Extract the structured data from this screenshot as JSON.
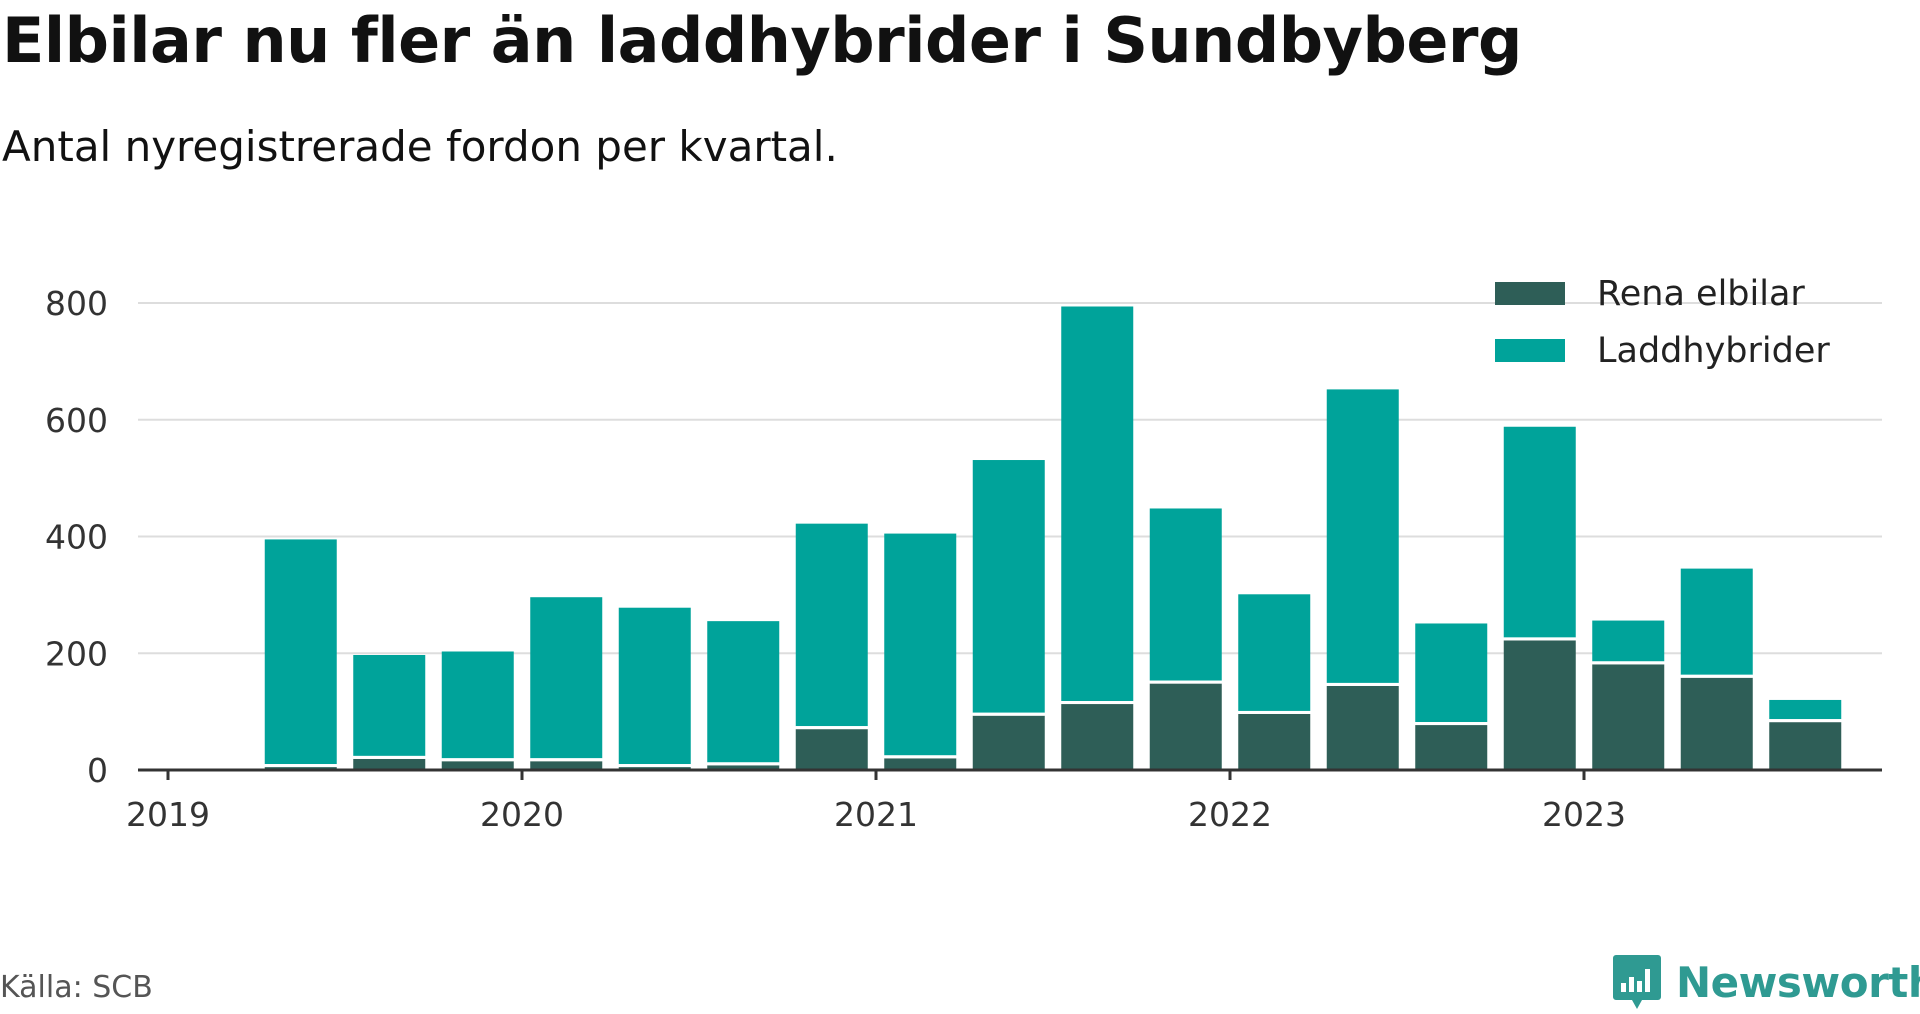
{
  "header": {
    "title": "Elbilar nu fler än laddhybrider i Sundbyberg",
    "subtitle": "Antal nyregistrerade fordon per kvartal."
  },
  "footer": {
    "source": "Källa: SCB",
    "brand": "Newsworthy"
  },
  "colors": {
    "elbilar": "#2e5e57",
    "laddhybrider": "#00a39a",
    "axis": "#333333",
    "grid": "#dddddd",
    "brand": "#2f9a92"
  },
  "chart_data": {
    "type": "bar",
    "stacked": true,
    "title": "Elbilar nu fler än laddhybrider i Sundbyberg",
    "subtitle": "Antal nyregistrerade fordon per kvartal.",
    "xlabel": "",
    "ylabel": "",
    "ylim": [
      0,
      800
    ],
    "yticks": [
      "0",
      "200",
      "400",
      "600",
      "800"
    ],
    "xticks": [
      "2019",
      "2020",
      "2021",
      "2022",
      "2023"
    ],
    "legend_position": "top-right",
    "grid": true,
    "categories": [
      "2019 Q2",
      "2019 Q3",
      "2019 Q4",
      "2020 Q1",
      "2020 Q2",
      "2020 Q3",
      "2020 Q4",
      "2021 Q1",
      "2021 Q2",
      "2021 Q3",
      "2021 Q4",
      "2022 Q1",
      "2022 Q2",
      "2022 Q3",
      "2022 Q4",
      "2023 Q1",
      "2023 Q2",
      "2023 Q3"
    ],
    "series": [
      {
        "name": "Rena elbilar",
        "values": [
          5,
          19,
          15,
          15,
          5,
          8,
          70,
          20,
          93,
          113,
          148,
          96,
          144,
          77,
          222,
          181,
          158,
          82
        ]
      },
      {
        "name": "Laddhybrider",
        "values": [
          390,
          178,
          188,
          281,
          273,
          247,
          352,
          385,
          438,
          681,
          300,
          205,
          508,
          174,
          366,
          75,
          187,
          38
        ]
      }
    ]
  }
}
